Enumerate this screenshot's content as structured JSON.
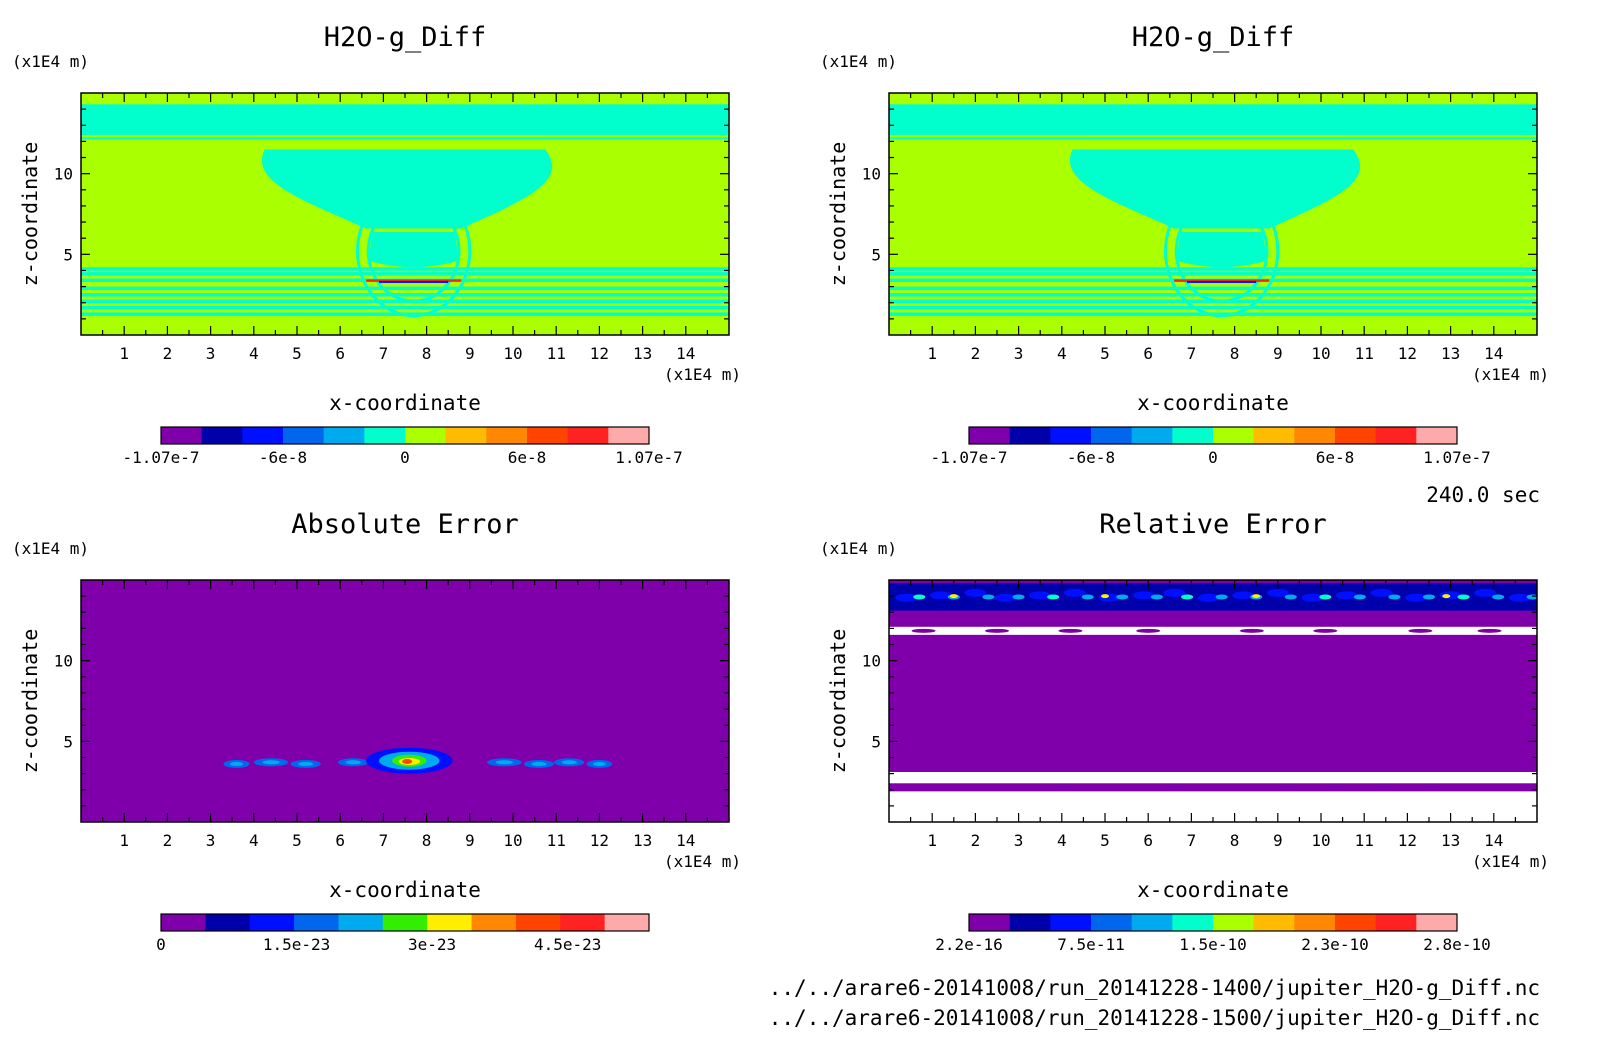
{
  "figure": {
    "time_label": "240.0 sec",
    "source_files": [
      "../../arare6-20141008/run_20141228-1400/jupiter_H2O-g_Diff.nc",
      "../../arare6-20141008/run_20141228-1500/jupiter_H2O-g_Diff.nc"
    ],
    "colors": {
      "purple": "#7f00aa",
      "navy": "#0000aa",
      "blue": "#0010ff",
      "royal": "#0066ee",
      "sky": "#00aaee",
      "aqua": "#00ffcc",
      "lime": "#aaff00",
      "green": "#33ee00",
      "yellow": "#ffee00",
      "gold": "#ffbb00",
      "orange": "#ff8800",
      "redorange": "#ff4400",
      "red": "#ff2222",
      "pink": "#ffaaaa"
    }
  },
  "chart_data": [
    {
      "type": "heatmap",
      "title": "H2O-g_Diff",
      "xlabel": "x-coordinate",
      "ylabel": "z-coordinate",
      "x_unit": "(x1E4 m)",
      "y_unit": "(x1E4 m)",
      "xlim": [
        0,
        15
      ],
      "ylim": [
        0,
        15
      ],
      "xticks": [
        "1",
        "2",
        "3",
        "4",
        "5",
        "6",
        "7",
        "8",
        "9",
        "10",
        "11",
        "12",
        "13",
        "14"
      ],
      "yticks": [
        "5",
        "10"
      ],
      "colorbar": {
        "labels": [
          "-1.07e-7",
          "-6e-8",
          "0",
          "6e-8",
          "1.07e-7"
        ],
        "colors": [
          "#7f00aa",
          "#0000aa",
          "#0010ff",
          "#0066ee",
          "#00aaee",
          "#00ffcc",
          "#aaff00",
          "#ffbb00",
          "#ff8800",
          "#ff4400",
          "#ff2222",
          "#ffaaaa"
        ]
      }
    },
    {
      "type": "heatmap",
      "title": "H2O-g_Diff",
      "xlabel": "x-coordinate",
      "ylabel": "z-coordinate",
      "x_unit": "(x1E4 m)",
      "y_unit": "(x1E4 m)",
      "xlim": [
        0,
        15
      ],
      "ylim": [
        0,
        15
      ],
      "xticks": [
        "1",
        "2",
        "3",
        "4",
        "5",
        "6",
        "7",
        "8",
        "9",
        "10",
        "11",
        "12",
        "13",
        "14"
      ],
      "yticks": [
        "5",
        "10"
      ],
      "colorbar": {
        "labels": [
          "-1.07e-7",
          "-6e-8",
          "0",
          "6e-8",
          "1.07e-7"
        ],
        "colors": [
          "#7f00aa",
          "#0000aa",
          "#0010ff",
          "#0066ee",
          "#00aaee",
          "#00ffcc",
          "#aaff00",
          "#ffbb00",
          "#ff8800",
          "#ff4400",
          "#ff2222",
          "#ffaaaa"
        ]
      }
    },
    {
      "type": "heatmap",
      "title": "Absolute Error",
      "xlabel": "x-coordinate",
      "ylabel": "z-coordinate",
      "x_unit": "(x1E4 m)",
      "y_unit": "(x1E4 m)",
      "xlim": [
        0,
        15
      ],
      "ylim": [
        0,
        15
      ],
      "xticks": [
        "1",
        "2",
        "3",
        "4",
        "5",
        "6",
        "7",
        "8",
        "9",
        "10",
        "11",
        "12",
        "13",
        "14"
      ],
      "yticks": [
        "5",
        "10"
      ],
      "colorbar": {
        "labels": [
          "0",
          "1.5e-23",
          "3e-23",
          "4.5e-23"
        ],
        "colors": [
          "#7f00aa",
          "#0000aa",
          "#0010ff",
          "#0066ee",
          "#00aaee",
          "#33ee00",
          "#ffee00",
          "#ff8800",
          "#ff4400",
          "#ff2222",
          "#ffaaaa"
        ]
      }
    },
    {
      "type": "heatmap",
      "title": "Relative Error",
      "xlabel": "x-coordinate",
      "ylabel": "z-coordinate",
      "x_unit": "(x1E4 m)",
      "y_unit": "(x1E4 m)",
      "xlim": [
        0,
        15
      ],
      "ylim": [
        0,
        15
      ],
      "xticks": [
        "1",
        "2",
        "3",
        "4",
        "5",
        "6",
        "7",
        "8",
        "9",
        "10",
        "11",
        "12",
        "13",
        "14"
      ],
      "yticks": [
        "5",
        "10"
      ],
      "colorbar": {
        "labels": [
          "2.2e-16",
          "7.5e-11",
          "1.5e-10",
          "2.3e-10",
          "2.8e-10"
        ],
        "colors": [
          "#7f00aa",
          "#0000aa",
          "#0010ff",
          "#0066ee",
          "#00aaee",
          "#00ffcc",
          "#aaff00",
          "#ffbb00",
          "#ff8800",
          "#ff4400",
          "#ff2222",
          "#ffaaaa"
        ]
      }
    }
  ]
}
